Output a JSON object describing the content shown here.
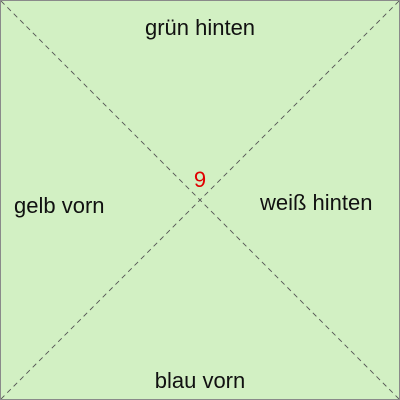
{
  "labels": {
    "top": "grün hinten",
    "left": "gelb vorn",
    "right": "weiß hinten",
    "bottom": "blau vorn"
  },
  "center": {
    "number": "9"
  },
  "colors": {
    "background": "#d2f0c3",
    "border": "#8a8a8a",
    "diagonal": "#555555",
    "text": "#111111",
    "number": "#e00000"
  }
}
